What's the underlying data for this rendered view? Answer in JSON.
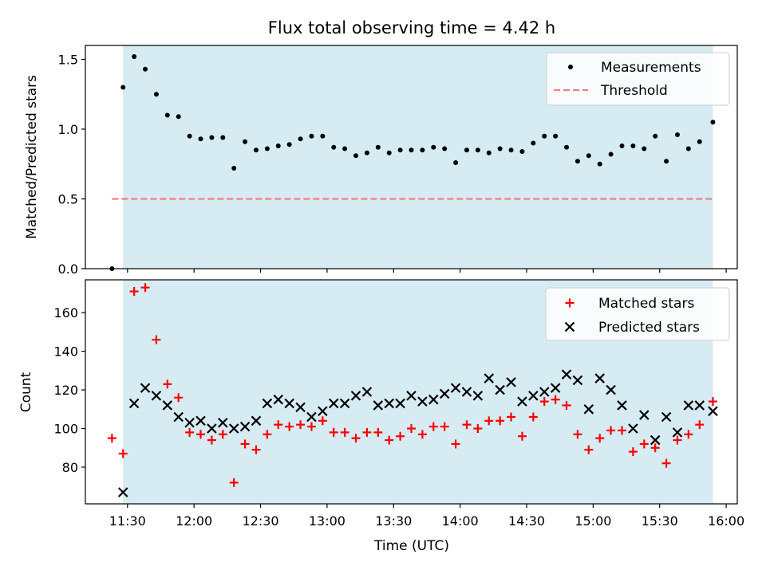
{
  "title": "Flux total observing time = 4.42 h",
  "colors": {
    "span_fill": "#add8e6",
    "measurement": "#000000",
    "threshold": "#f08080",
    "matched": "#ff0000",
    "predicted": "#000000"
  },
  "chart_data": [
    {
      "type": "scatter",
      "title": "Flux total observing time = 4.42 h",
      "xlabel": "",
      "ylabel": "Matched/Predicted stars",
      "xlim": [
        "11:11",
        "16:05"
      ],
      "ylim": [
        0,
        1.6
      ],
      "yticks": [
        "0.0",
        "0.5",
        "1.0",
        "1.5"
      ],
      "observing_span": [
        "11:28",
        "15:54"
      ],
      "legend": {
        "placement": "upper right",
        "entries": [
          "Measurements",
          "Threshold"
        ]
      },
      "threshold": {
        "name": "Threshold",
        "y": 0.5,
        "x": [
          "11:23",
          "15:54"
        ]
      },
      "series": [
        {
          "name": "Measurements",
          "x": [
            "11:23",
            "11:28",
            "11:33",
            "11:38",
            "11:43",
            "11:48",
            "11:53",
            "11:58",
            "12:03",
            "12:08",
            "12:13",
            "12:18",
            "12:23",
            "12:28",
            "12:33",
            "12:38",
            "12:43",
            "12:48",
            "12:53",
            "12:58",
            "13:03",
            "13:08",
            "13:13",
            "13:18",
            "13:23",
            "13:28",
            "13:33",
            "13:38",
            "13:43",
            "13:48",
            "13:53",
            "13:58",
            "14:03",
            "14:08",
            "14:13",
            "14:18",
            "14:23",
            "14:28",
            "14:33",
            "14:38",
            "14:43",
            "14:48",
            "14:53",
            "14:58",
            "15:03",
            "15:08",
            "15:13",
            "15:18",
            "15:23",
            "15:28",
            "15:33",
            "15:38",
            "15:43",
            "15:48",
            "15:54"
          ],
          "y": [
            0.0,
            1.3,
            1.52,
            1.43,
            1.25,
            1.1,
            1.09,
            0.95,
            0.93,
            0.94,
            0.94,
            0.72,
            0.91,
            0.85,
            0.86,
            0.88,
            0.89,
            0.93,
            0.95,
            0.95,
            0.87,
            0.86,
            0.81,
            0.83,
            0.87,
            0.83,
            0.85,
            0.85,
            0.85,
            0.87,
            0.86,
            0.76,
            0.85,
            0.85,
            0.83,
            0.86,
            0.85,
            0.84,
            0.9,
            0.95,
            0.95,
            0.87,
            0.77,
            0.81,
            0.75,
            0.82,
            0.88,
            0.88,
            0.86,
            0.95,
            0.77,
            0.96,
            0.86,
            0.91,
            1.05
          ]
        }
      ]
    },
    {
      "type": "scatter",
      "xlabel": "Time (UTC)",
      "ylabel": "Count",
      "xlim": [
        "11:11",
        "16:05"
      ],
      "ylim": [
        61,
        177
      ],
      "yticks": [
        "80",
        "100",
        "120",
        "140",
        "160"
      ],
      "xticks": [
        "11:30",
        "12:00",
        "12:30",
        "13:00",
        "13:30",
        "14:00",
        "14:30",
        "15:00",
        "15:30",
        "16:00"
      ],
      "observing_span": [
        "11:28",
        "15:54"
      ],
      "legend": {
        "placement": "upper right",
        "entries": [
          "Matched stars",
          "Predicted stars"
        ]
      },
      "series": [
        {
          "name": "Matched stars",
          "marker": "+",
          "x": [
            "11:23",
            "11:28",
            "11:33",
            "11:38",
            "11:43",
            "11:48",
            "11:53",
            "11:58",
            "12:03",
            "12:08",
            "12:13",
            "12:18",
            "12:23",
            "12:28",
            "12:33",
            "12:38",
            "12:43",
            "12:48",
            "12:53",
            "12:58",
            "13:03",
            "13:08",
            "13:13",
            "13:18",
            "13:23",
            "13:28",
            "13:33",
            "13:38",
            "13:43",
            "13:48",
            "13:53",
            "13:58",
            "14:03",
            "14:08",
            "14:13",
            "14:18",
            "14:23",
            "14:28",
            "14:33",
            "14:38",
            "14:43",
            "14:48",
            "14:53",
            "14:58",
            "15:03",
            "15:08",
            "15:13",
            "15:18",
            "15:23",
            "15:28",
            "15:33",
            "15:38",
            "15:43",
            "15:48",
            "15:54"
          ],
          "y": [
            95,
            87,
            171,
            173,
            146,
            123,
            116,
            98,
            97,
            94,
            97,
            72,
            92,
            89,
            97,
            102,
            101,
            102,
            101,
            104,
            98,
            98,
            95,
            98,
            98,
            94,
            96,
            100,
            97,
            101,
            101,
            92,
            102,
            100,
            104,
            104,
            106,
            96,
            106,
            114,
            115,
            112,
            97,
            89,
            95,
            99,
            99,
            88,
            92,
            90,
            82,
            94,
            97,
            102,
            114
          ]
        },
        {
          "name": "Predicted stars",
          "marker": "x",
          "x": [
            "11:28",
            "11:33",
            "11:38",
            "11:43",
            "11:48",
            "11:53",
            "11:58",
            "12:03",
            "12:08",
            "12:13",
            "12:18",
            "12:23",
            "12:28",
            "12:33",
            "12:38",
            "12:43",
            "12:48",
            "12:53",
            "12:58",
            "13:03",
            "13:08",
            "13:13",
            "13:18",
            "13:23",
            "13:28",
            "13:33",
            "13:38",
            "13:43",
            "13:48",
            "13:53",
            "13:58",
            "14:03",
            "14:08",
            "14:13",
            "14:18",
            "14:23",
            "14:28",
            "14:33",
            "14:38",
            "14:43",
            "14:48",
            "14:53",
            "14:58",
            "15:03",
            "15:08",
            "15:13",
            "15:18",
            "15:23",
            "15:28",
            "15:33",
            "15:38",
            "15:43",
            "15:48",
            "15:54"
          ],
          "y": [
            67,
            113,
            121,
            117,
            112,
            106,
            103,
            104,
            100,
            103,
            100,
            101,
            104,
            113,
            115,
            113,
            111,
            106,
            109,
            113,
            113,
            117,
            119,
            112,
            113,
            113,
            117,
            114,
            115,
            118,
            121,
            119,
            117,
            126,
            120,
            124,
            114,
            117,
            119,
            121,
            128,
            125,
            110,
            126,
            120,
            112,
            100,
            107,
            94,
            106,
            98,
            112,
            112,
            109
          ]
        }
      ]
    }
  ]
}
